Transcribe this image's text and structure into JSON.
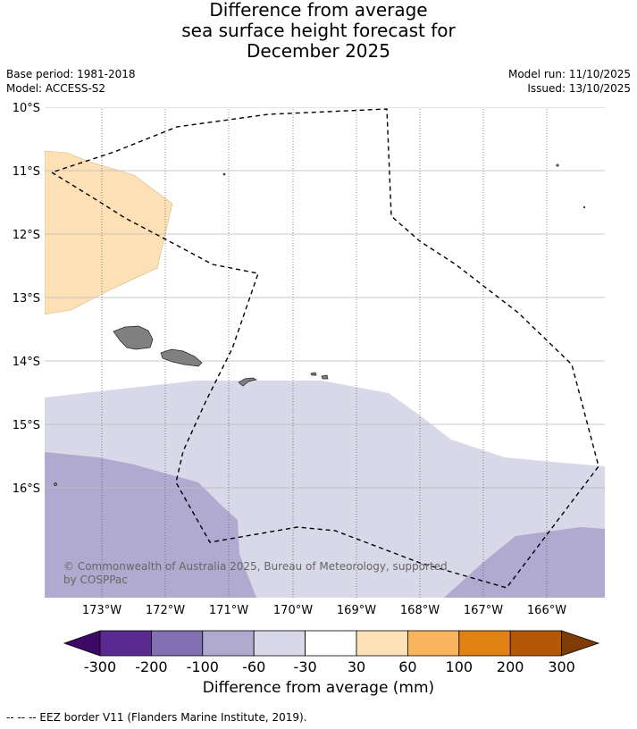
{
  "title": {
    "line1": "Difference from average",
    "line2": "sea surface height forecast for",
    "line3": "December 2025"
  },
  "meta": {
    "base_period": "Base period: 1981-2018",
    "model": "Model: ACCESS-S2",
    "model_run": "Model run: 11/10/2025",
    "issued": "Issued: 13/10/2025"
  },
  "map": {
    "lat_labels": [
      "10°S",
      "11°S",
      "12°S",
      "13°S",
      "14°S",
      "15°S",
      "16°S"
    ],
    "lon_labels": [
      "173°W",
      "172°W",
      "171°W",
      "170°W",
      "169°W",
      "168°W",
      "167°W",
      "166°W"
    ],
    "copyright_line1": "© Commonwealth of Australia 2025, Bureau of Meteorology, supported",
    "copyright_line2": "by COSPPac",
    "colors": {
      "ocean_white": "#ffffff",
      "light_peach": "#fde0b6",
      "light_lavender": "#d8d8e9",
      "mid_lavender": "#b0aad0",
      "land": "#808080",
      "eez_line": "#000000"
    }
  },
  "colorbar": {
    "ticks": [
      "-300",
      "-200",
      "-100",
      "-60",
      "-30",
      "30",
      "60",
      "100",
      "200",
      "300"
    ],
    "colors": [
      "#3c0a64",
      "#5a2a90",
      "#8270b0",
      "#b0aad0",
      "#d8d8e9",
      "#ffffff",
      "#fde0b6",
      "#fab45e",
      "#e08214",
      "#b35806",
      "#7f3b08"
    ],
    "label": "Difference from average (mm)"
  },
  "footer": {
    "legend_text": "--  --  -- EEZ border V11 (Flanders Marine Institute, 2019)."
  }
}
